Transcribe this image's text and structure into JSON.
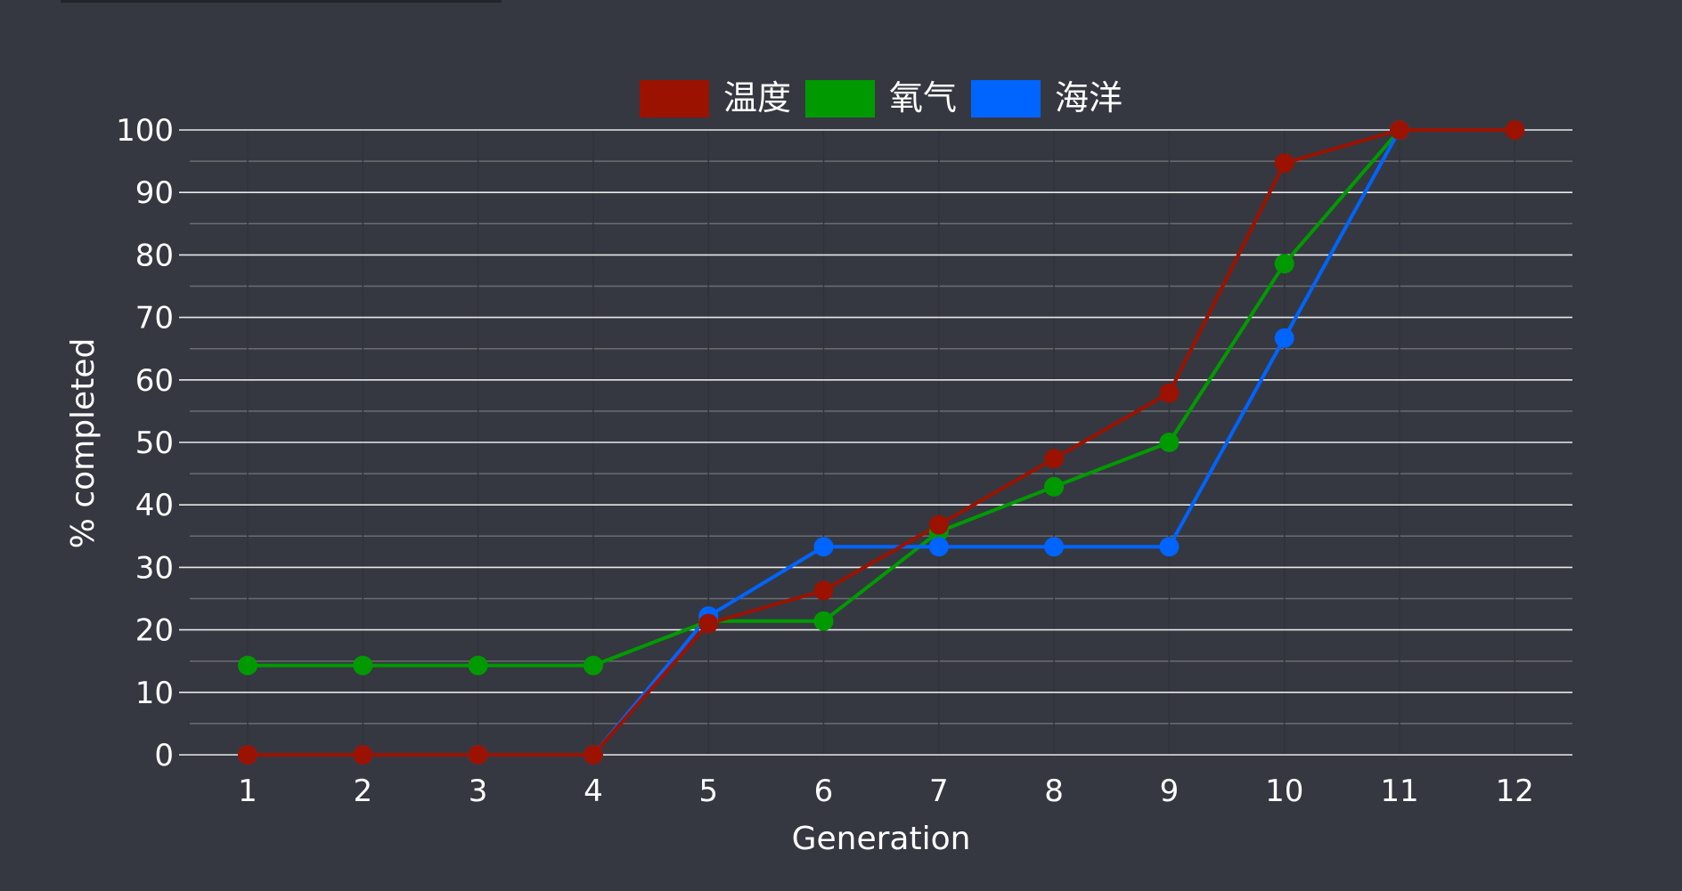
{
  "chart_data": {
    "type": "line",
    "x": [
      1,
      2,
      3,
      4,
      5,
      6,
      7,
      8,
      9,
      10,
      11,
      12
    ],
    "xlabel": "Generation",
    "ylabel": "% completed",
    "ylim": [
      0,
      100
    ],
    "yticks": [
      0,
      10,
      20,
      30,
      40,
      50,
      60,
      70,
      80,
      90,
      100
    ],
    "grid": true,
    "legend_position": "top-center",
    "series": [
      {
        "name": "温度",
        "color": "#9b1200",
        "values": [
          0,
          0,
          0,
          0,
          21,
          26.3,
          36.8,
          47.4,
          57.9,
          94.7,
          100,
          100
        ]
      },
      {
        "name": "氧气",
        "color": "#009a00",
        "values": [
          14.3,
          14.3,
          14.3,
          14.3,
          21.4,
          21.4,
          35.7,
          42.9,
          50,
          78.6,
          100,
          null
        ]
      },
      {
        "name": "海洋",
        "color": "#0064ff",
        "values": [
          0,
          0,
          0,
          0,
          22.2,
          33.3,
          33.3,
          33.3,
          33.3,
          66.7,
          100,
          null
        ]
      }
    ]
  }
}
